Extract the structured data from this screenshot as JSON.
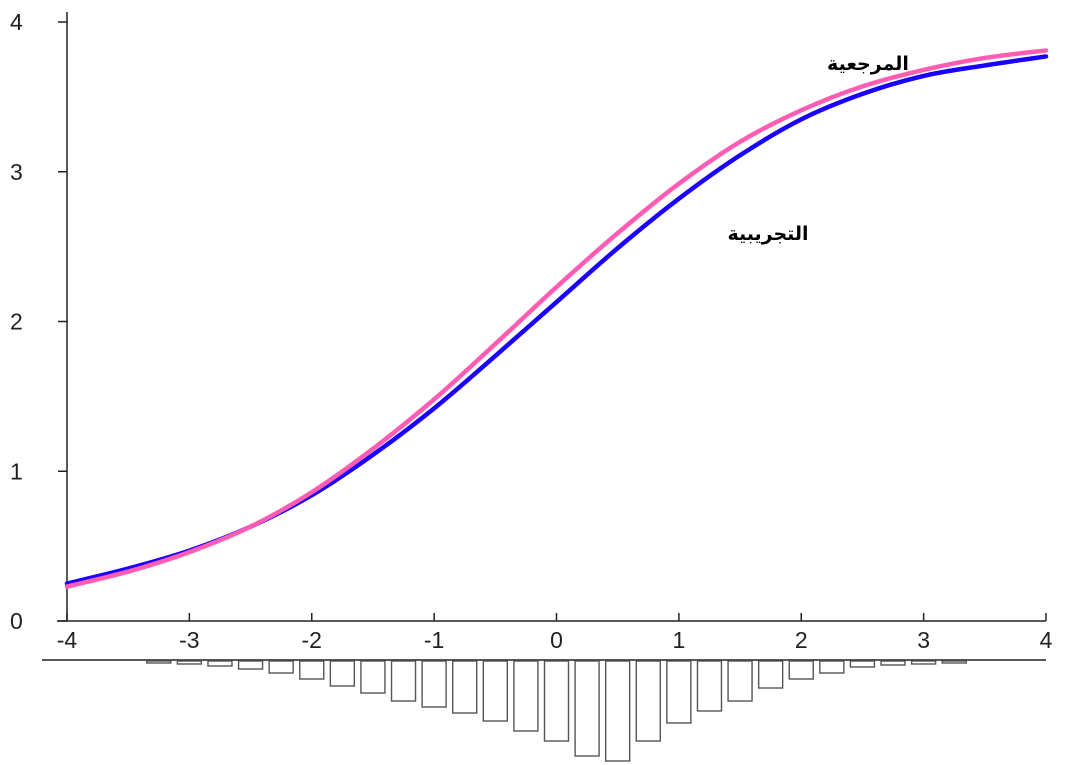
{
  "chart_data": {
    "type": "line",
    "title": "",
    "xlabel": "",
    "ylabel": "",
    "xlim": [
      -4,
      4
    ],
    "ylim": [
      0,
      4
    ],
    "x_ticks": [
      "-4",
      "-3",
      "-2",
      "-1",
      "0",
      "1",
      "2",
      "3",
      "4"
    ],
    "y_ticks": [
      "0",
      "1",
      "2",
      "3",
      "4"
    ],
    "grid": false,
    "series": [
      {
        "name": "المرجعية",
        "color": "#ff5cb4",
        "x": [
          -4,
          -3.5,
          -3,
          -2.5,
          -2,
          -1.5,
          -1,
          -0.5,
          0,
          0.5,
          1,
          1.5,
          2,
          2.5,
          3,
          3.5,
          4
        ],
        "y": [
          0.23,
          0.33,
          0.46,
          0.63,
          0.86,
          1.15,
          1.48,
          1.85,
          2.23,
          2.59,
          2.92,
          3.2,
          3.41,
          3.57,
          3.68,
          3.76,
          3.81
        ]
      },
      {
        "name": "التجريبية",
        "color": "#1a00ff",
        "x": [
          -4,
          -3.5,
          -3,
          -2.5,
          -2,
          -1.5,
          -1,
          -0.5,
          0,
          0.5,
          1,
          1.5,
          2,
          2.5,
          3,
          3.5,
          4
        ],
        "y": [
          0.25,
          0.35,
          0.47,
          0.63,
          0.84,
          1.11,
          1.42,
          1.77,
          2.13,
          2.49,
          2.82,
          3.11,
          3.35,
          3.52,
          3.64,
          3.71,
          3.77
        ]
      }
    ],
    "histogram": {
      "x": [
        -3.25,
        -3.0,
        -2.75,
        -2.5,
        -2.25,
        -2.0,
        -1.75,
        -1.5,
        -1.25,
        -1.0,
        -0.75,
        -0.5,
        -0.25,
        0.0,
        0.25,
        0.5,
        0.75,
        1.0,
        1.25,
        1.5,
        1.75,
        2.0,
        2.25,
        2.5,
        2.75,
        3.0,
        3.25
      ],
      "values": [
        0.02,
        0.03,
        0.05,
        0.08,
        0.12,
        0.18,
        0.25,
        0.32,
        0.4,
        0.46,
        0.52,
        0.6,
        0.7,
        0.8,
        0.95,
        1.0,
        0.8,
        0.62,
        0.5,
        0.4,
        0.27,
        0.18,
        0.12,
        0.06,
        0.04,
        0.03,
        0.02
      ]
    }
  }
}
